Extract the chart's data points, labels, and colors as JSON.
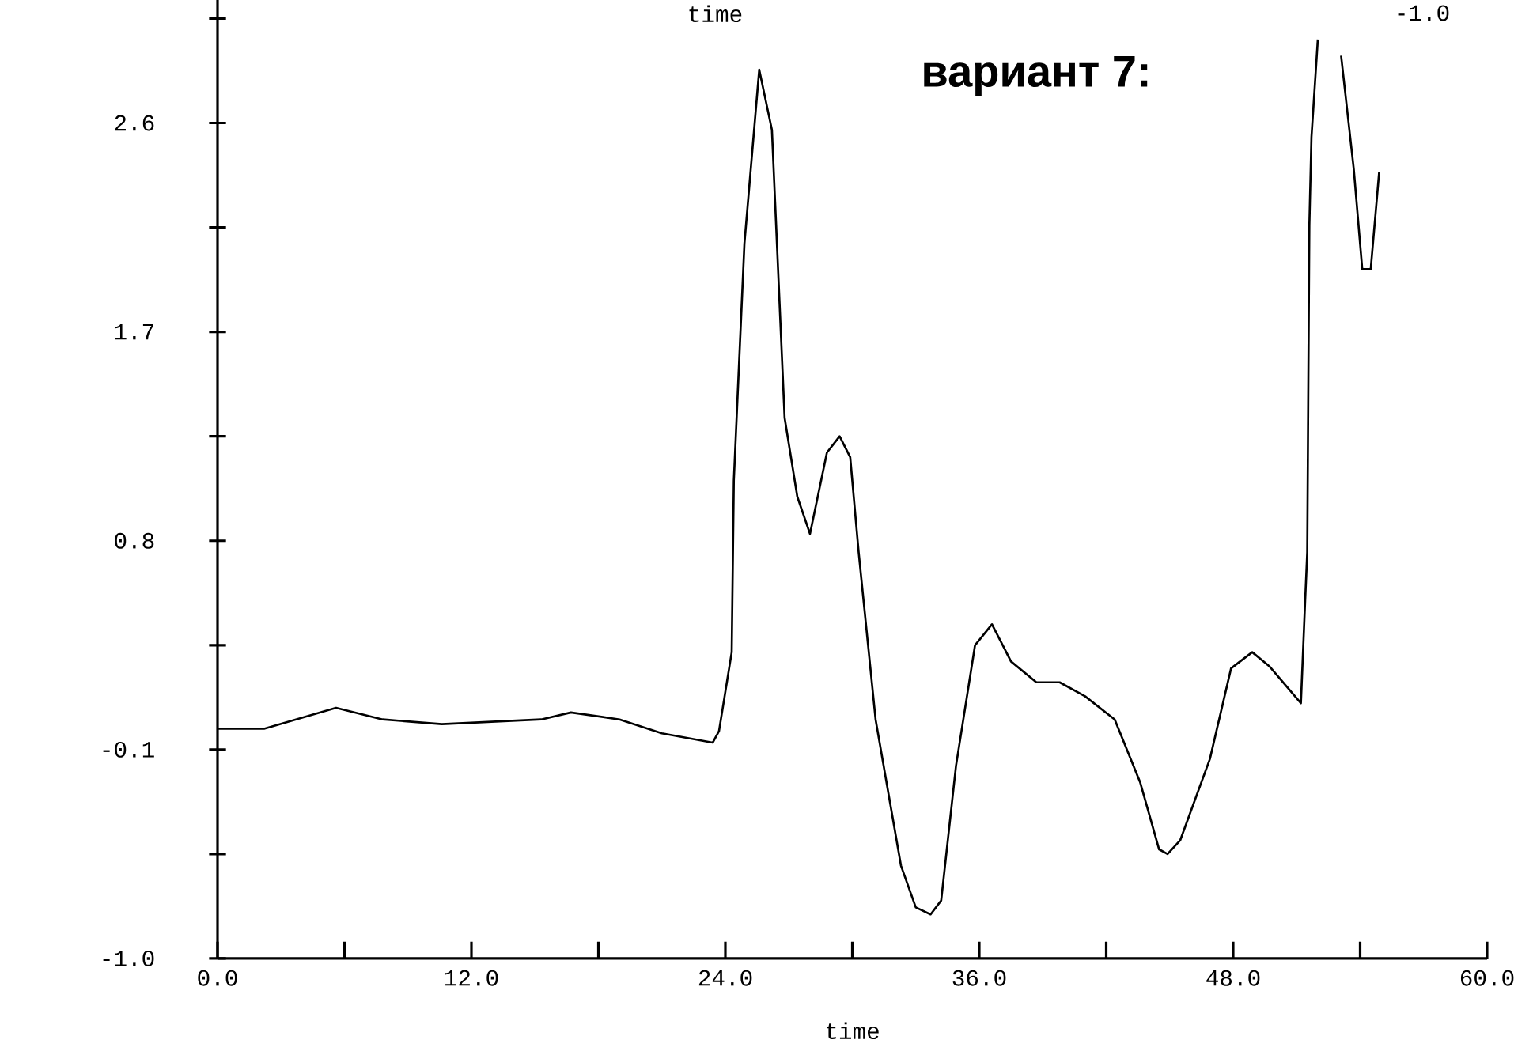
{
  "chart_data": {
    "type": "line",
    "xlabel": "time",
    "annotations": [
      "вариант 7:",
      "time",
      "-1.0"
    ],
    "xlim": [
      0,
      60
    ],
    "ylim": [
      -1.0,
      3.13
    ],
    "xticks": [
      {
        "value": 0,
        "label": "0.0"
      },
      {
        "value": 6,
        "label": null
      },
      {
        "value": 12,
        "label": "12.0"
      },
      {
        "value": 18,
        "label": null
      },
      {
        "value": 24,
        "label": "24.0"
      },
      {
        "value": 30,
        "label": null
      },
      {
        "value": 36,
        "label": "36.0"
      },
      {
        "value": 42,
        "label": null
      },
      {
        "value": 48,
        "label": "48.0"
      },
      {
        "value": 54,
        "label": null
      },
      {
        "value": 60,
        "label": "60.0"
      }
    ],
    "yticks": [
      {
        "value": -1.0,
        "label": "-1.0"
      },
      {
        "value": -0.55,
        "label": null
      },
      {
        "value": -0.1,
        "label": "-0.1"
      },
      {
        "value": 0.35,
        "label": null
      },
      {
        "value": 0.8,
        "label": "0.8"
      },
      {
        "value": 1.25,
        "label": null
      },
      {
        "value": 1.7,
        "label": "1.7"
      },
      {
        "value": 2.15,
        "label": null
      },
      {
        "value": 2.6,
        "label": "2.6"
      },
      {
        "value": 3.05,
        "label": null
      }
    ],
    "grid": false,
    "legend": false,
    "marker": "none",
    "line_style": "solid",
    "series": [
      {
        "color": "#000000",
        "x": [
          0,
          2.2,
          5.6,
          7.8,
          10.6,
          15.3,
          16.7,
          19.0,
          21.0,
          23.4,
          23.7,
          24.3,
          24.4,
          24.9,
          25.6,
          26.2,
          26.8,
          27.4,
          28.0,
          28.8,
          29.4,
          29.9,
          30.3,
          31.1,
          32.3,
          33.0,
          33.7,
          34.2,
          34.9,
          35.8,
          36.6,
          37.5,
          38.7,
          39.8,
          41.0,
          42.4,
          43.6,
          44.5,
          44.9,
          45.5,
          46.9,
          47.9,
          48.9,
          49.7,
          51.2,
          51.4,
          51.5,
          51.6,
          51.7,
          52.0,
          52.1,
          52.9,
          53.1,
          53.7,
          54.1,
          54.5,
          54.9
        ],
        "values": [
          -0.01,
          -0.01,
          0.08,
          0.03,
          0.01,
          0.03,
          0.06,
          0.03,
          -0.03,
          -0.07,
          -0.02,
          0.32,
          1.06,
          2.08,
          2.83,
          2.57,
          1.33,
          0.99,
          0.83,
          1.18,
          1.25,
          1.16,
          0.75,
          0.03,
          -0.6,
          -0.78,
          -0.81,
          -0.75,
          -0.17,
          0.35,
          0.44,
          0.28,
          0.19,
          0.19,
          0.13,
          0.03,
          -0.24,
          -0.53,
          -0.55,
          -0.49,
          -0.14,
          0.25,
          0.32,
          0.26,
          0.1,
          0.54,
          0.75,
          2.16,
          2.54,
          2.96,
          null,
          null,
          2.89,
          2.4,
          1.97,
          1.97,
          2.39
        ]
      }
    ]
  }
}
